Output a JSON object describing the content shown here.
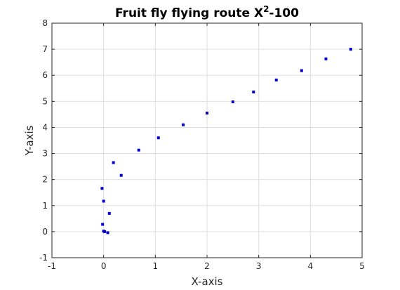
{
  "chart_data": {
    "type": "scatter",
    "title": "Fruit fly flying route X",
    "title_superscript": "2",
    "title_suffix": "-100",
    "xlabel": "X-axis",
    "ylabel": "Y-axis",
    "xlim": [
      -1,
      5
    ],
    "ylim": [
      -1,
      8
    ],
    "xticks": [
      -1,
      0,
      1,
      2,
      3,
      4,
      5
    ],
    "yticks": [
      -1,
      0,
      1,
      2,
      3,
      4,
      5,
      6,
      7,
      8
    ],
    "grid": true,
    "legend": "none",
    "marker_color": "#0000cc",
    "grid_color": "#dfdfdf",
    "axis_color": "#262626",
    "series": [
      {
        "points": [
          {
            "x": -0.02,
            "y": 0.28
          },
          {
            "x": 0.0,
            "y": 0.02
          },
          {
            "x": 0.02,
            "y": 0.0
          },
          {
            "x": 0.08,
            "y": -0.04
          },
          {
            "x": 0.11,
            "y": 0.7
          },
          {
            "x": 0.0,
            "y": 1.17
          },
          {
            "x": -0.03,
            "y": 1.66
          },
          {
            "x": 0.34,
            "y": 2.16
          },
          {
            "x": 0.19,
            "y": 2.65
          },
          {
            "x": 0.68,
            "y": 3.13
          },
          {
            "x": 1.06,
            "y": 3.6
          },
          {
            "x": 1.54,
            "y": 4.1
          },
          {
            "x": 2.0,
            "y": 4.55
          },
          {
            "x": 2.5,
            "y": 4.98
          },
          {
            "x": 2.9,
            "y": 5.36
          },
          {
            "x": 3.34,
            "y": 5.82
          },
          {
            "x": 3.83,
            "y": 6.18
          },
          {
            "x": 4.3,
            "y": 6.63
          },
          {
            "x": 4.78,
            "y": 7.0
          }
        ]
      }
    ]
  }
}
